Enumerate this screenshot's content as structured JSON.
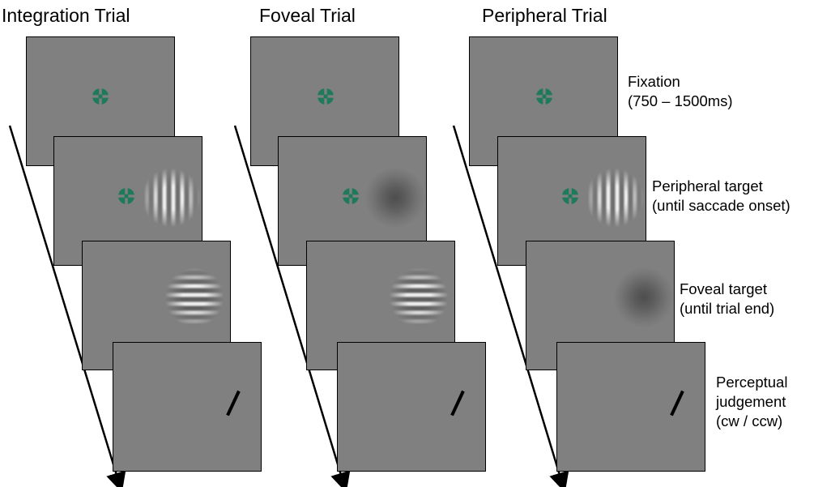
{
  "columns": [
    {
      "title": "Integration Trial"
    },
    {
      "title": "Foveal Trial"
    },
    {
      "title": "Peripheral Trial"
    }
  ],
  "stage_labels": [
    {
      "line1": "Fixation",
      "line2": "(750 – 1500ms)"
    },
    {
      "line1": "Peripheral target",
      "line2": "(until saccade onset)"
    },
    {
      "line1": "Foveal target",
      "line2": "(until trial end)"
    },
    {
      "line1": "Perceptual",
      "line2": "judgement",
      "line3": "(cw / ccw)"
    }
  ],
  "colors": {
    "screen_gray": "#808080",
    "fixation_green": "#1e7a5a"
  }
}
